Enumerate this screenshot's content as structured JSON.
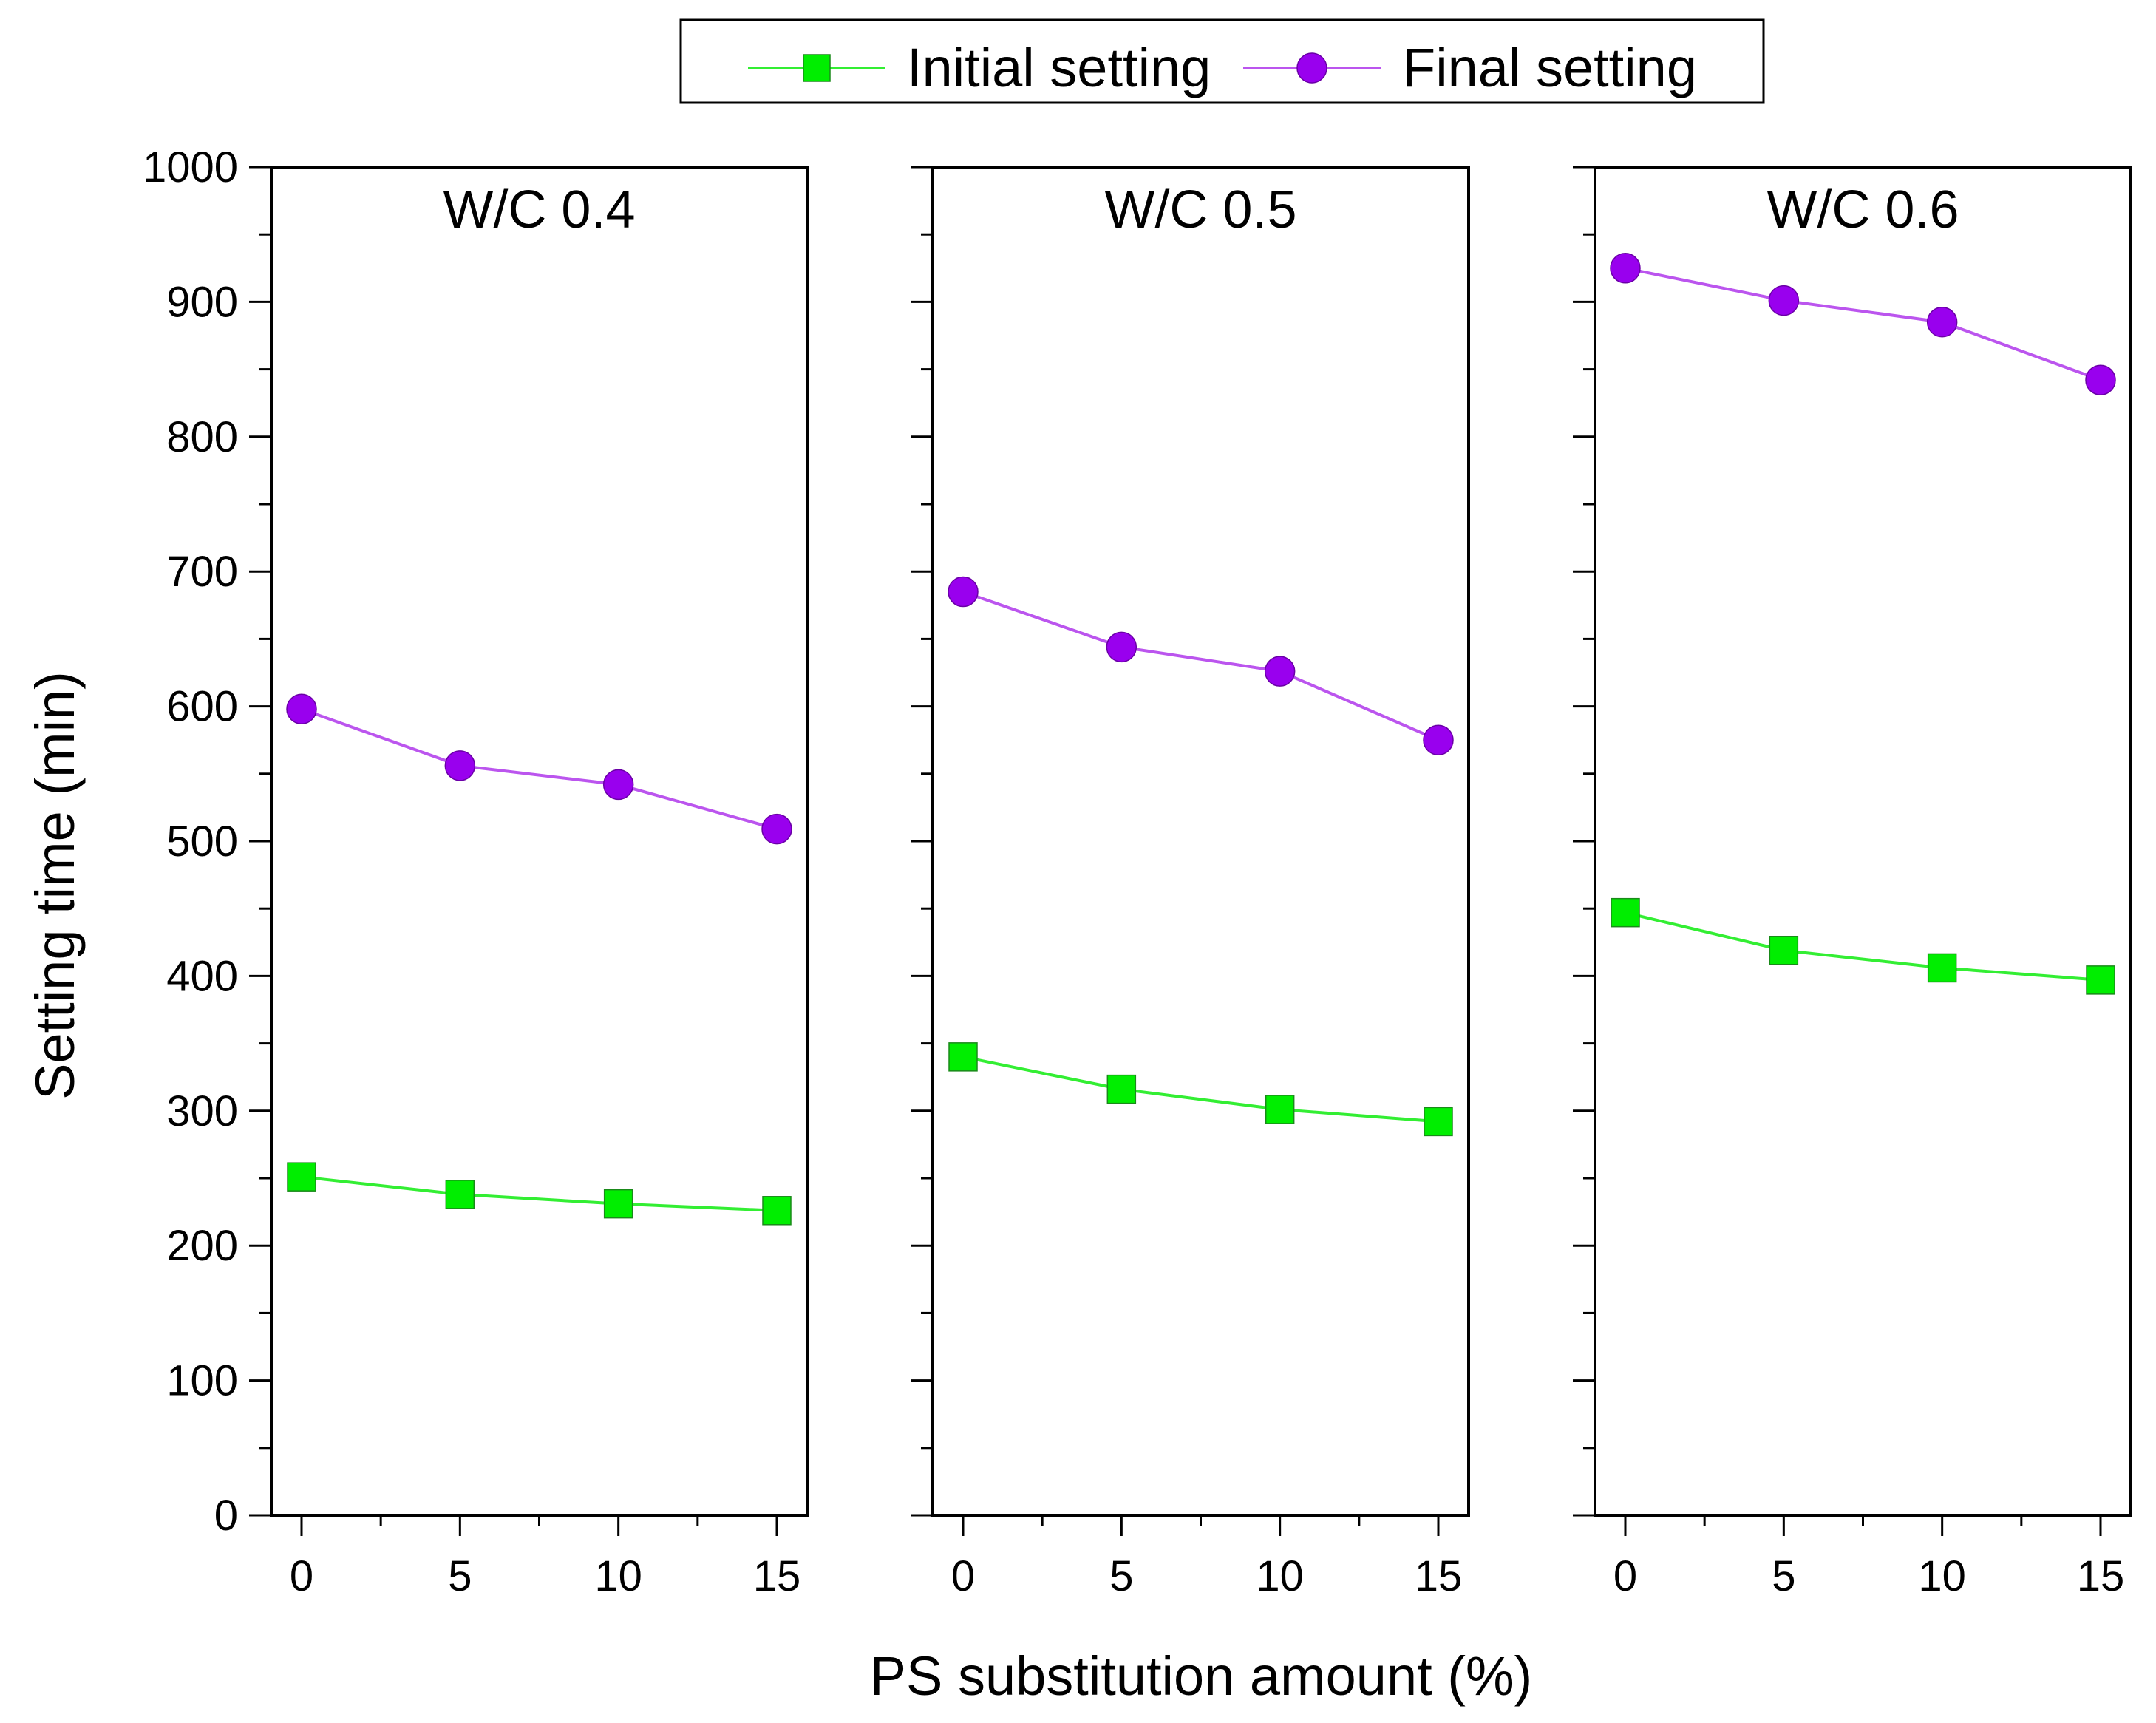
{
  "chart_data": {
    "type": "line",
    "ylabel": "Setting time (min)",
    "xlabel": "PS substitution amount (%)",
    "ylim": [
      0,
      1000
    ],
    "yticks": [
      0,
      100,
      200,
      300,
      400,
      500,
      600,
      700,
      800,
      900,
      1000
    ],
    "x": [
      0,
      5,
      10,
      15
    ],
    "xtick_labels": [
      "0",
      "5",
      "10",
      "15"
    ],
    "legend": {
      "placement": "top-center",
      "entries": [
        {
          "name": "Initial setting",
          "marker": "square",
          "color": "#00ee00"
        },
        {
          "name": "Final setting",
          "marker": "circle",
          "color": "#9900ee"
        }
      ]
    },
    "colors": {
      "initial_line": "#33ee33",
      "initial_marker": "#00ee00",
      "final_line": "#bb55ee",
      "final_marker": "#9900ee"
    },
    "panels": [
      {
        "title": "W/C 0.4",
        "series": [
          {
            "name": "Initial setting",
            "values": [
              251,
              238,
              231,
              226
            ]
          },
          {
            "name": "Final setting",
            "values": [
              598,
              556,
              542,
              509
            ]
          }
        ]
      },
      {
        "title": "W/C 0.5",
        "series": [
          {
            "name": "Initial setting",
            "values": [
              340,
              316,
              301,
              292
            ]
          },
          {
            "name": "Final setting",
            "values": [
              685,
              644,
              626,
              575
            ]
          }
        ]
      },
      {
        "title": "W/C 0.6",
        "series": [
          {
            "name": "Initial setting",
            "values": [
              447,
              419,
              406,
              397
            ]
          },
          {
            "name": "Final setting",
            "values": [
              925,
              901,
              885,
              842
            ]
          }
        ]
      }
    ]
  }
}
